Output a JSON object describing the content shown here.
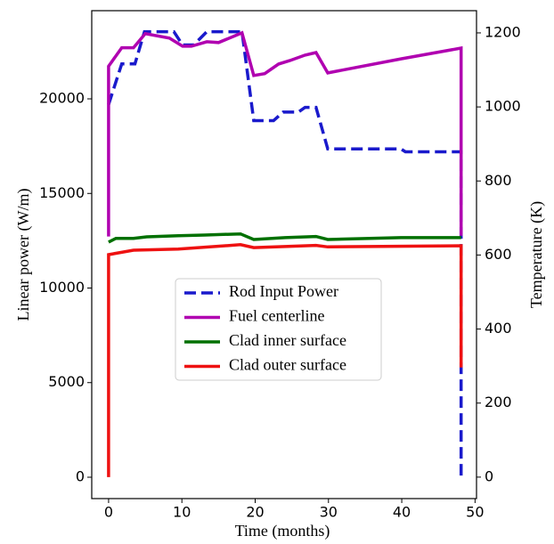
{
  "chart_data": {
    "type": "line",
    "x_label": "Time (months)",
    "y_label": "Linear power (W/m)",
    "y2_label": "Temperature (K)",
    "xlim": [
      -2.3,
      50.2
    ],
    "ylim": [
      -1130,
      24660
    ],
    "y2lim": [
      -58,
      1260
    ],
    "xticks": [
      0,
      10,
      20,
      30,
      40,
      50
    ],
    "yticks": [
      0,
      5000,
      10000,
      15000,
      20000
    ],
    "y2ticks": [
      0,
      200,
      400,
      600,
      800,
      1000,
      1200
    ],
    "legend": "center",
    "series": [
      {
        "name": "Rod Input Power",
        "color": "#1a1acc",
        "linestyle": "dashed",
        "axis": "y",
        "x": [
          0,
          1.8,
          3.6,
          4.9,
          8.9,
          10.1,
          11.6,
          13.4,
          18.2,
          19.8,
          22.5,
          23.8,
          25.9,
          26.8,
          28.3,
          29.9,
          39.9,
          40.5,
          48.1,
          48.1
        ],
        "values": [
          19700,
          21850,
          21850,
          23550,
          23550,
          22850,
          22850,
          23550,
          23550,
          18850,
          18850,
          19300,
          19300,
          19550,
          19550,
          17350,
          17350,
          17200,
          17200,
          0
        ]
      },
      {
        "name": "Fuel centerline",
        "color": "#b000b0",
        "linestyle": "solid",
        "axis": "y2",
        "x": [
          0,
          0,
          1.8,
          3.4,
          5.0,
          8.3,
          10.1,
          11.3,
          13.4,
          15.0,
          18.2,
          19.8,
          21.3,
          23.2,
          24.7,
          26.8,
          28.3,
          29.9,
          39.9,
          48.1,
          48.1
        ],
        "values": [
          650,
          1110,
          1160,
          1160,
          1198,
          1186,
          1164,
          1164,
          1176,
          1174,
          1200,
          1085,
          1090,
          1116,
          1125,
          1140,
          1147,
          1092,
          1130,
          1159,
          652
        ]
      },
      {
        "name": "Clad inner surface",
        "color": "#007000",
        "linestyle": "solid",
        "axis": "y2",
        "x": [
          0,
          1,
          3.4,
          5.2,
          9.5,
          13.1,
          18,
          19.8,
          24.1,
          28.3,
          29.9,
          39.9,
          48.1
        ],
        "values": [
          635,
          645,
          645,
          649,
          652,
          654,
          657,
          642,
          647,
          650,
          642,
          647,
          647
        ]
      },
      {
        "name": "Clad outer surface",
        "color": "#ee1111",
        "linestyle": "solid",
        "axis": "y2",
        "x": [
          0,
          0,
          3.4,
          9.5,
          18,
          19.8,
          28.3,
          29.9,
          48.1,
          48.1
        ],
        "values": [
          0,
          601,
          613,
          616,
          628,
          620,
          626,
          622,
          625,
          296
        ]
      }
    ]
  }
}
